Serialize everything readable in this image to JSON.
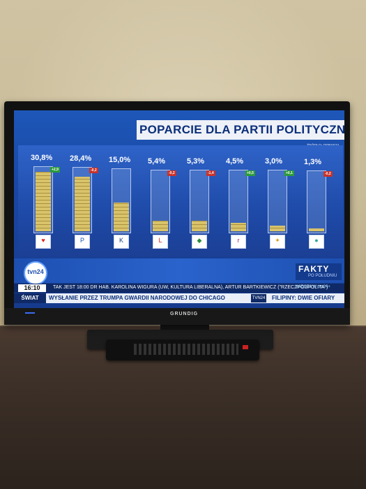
{
  "broadcast": {
    "title": "POPARCIE DLA PARTII POLITYCZNYCH",
    "source": "ŹRÓDŁO: OPINIA24",
    "channel_logo": "tvn24",
    "show_title": "FAKTY",
    "show_subtitle": "PO POŁUDNIU",
    "time": "16:10",
    "ticker_top": "TAK JEST 18:00   DR HAB. KAROLINA WIGURA (UW, KULTURA LIBERALNA), ARTUR BARTKIEWICZ (\"RZECZPOSPOLITA\")",
    "watch_more": "WIĘCEJ W tvn24+",
    "category": "ŚWIAT",
    "headline": "WYSŁANIE PRZEZ TRUMPA GWARDII NARODOWEJ DO CHICAGO",
    "tvn24_tag": "TVN24",
    "headline2": "FILIPINY: DWIE OFIARY",
    "tv_brand": "GRUNDIG"
  },
  "chart_data": {
    "type": "bar",
    "values": [
      30.8,
      28.4,
      15.0,
      5.4,
      5.3,
      4.5,
      3.0,
      1.3
    ],
    "value_labels": [
      "30,8%",
      "28,4%",
      "15,0%",
      "5,4%",
      "5,3%",
      "4,5%",
      "3,0%",
      "1,3%"
    ],
    "changes": [
      "+2,9",
      "-0,2",
      "",
      "-0,2",
      "-1,4",
      "+0,5",
      "+0,1",
      "-0,2"
    ],
    "change_dir": [
      "up",
      "down",
      "",
      "down",
      "down",
      "up",
      "up",
      "down"
    ],
    "logos": [
      "heart-logo",
      "pis-logo",
      "konfederacja-logo",
      "lewica-logo",
      "psl-logo",
      "razem-logo",
      "polska-2050-logo",
      "ruch-logo"
    ],
    "ylim": [
      0,
      32
    ],
    "grid": false,
    "colors": {
      "fill": "#d9c36a",
      "up": "#2d9a3c",
      "down": "#c8322b"
    }
  }
}
